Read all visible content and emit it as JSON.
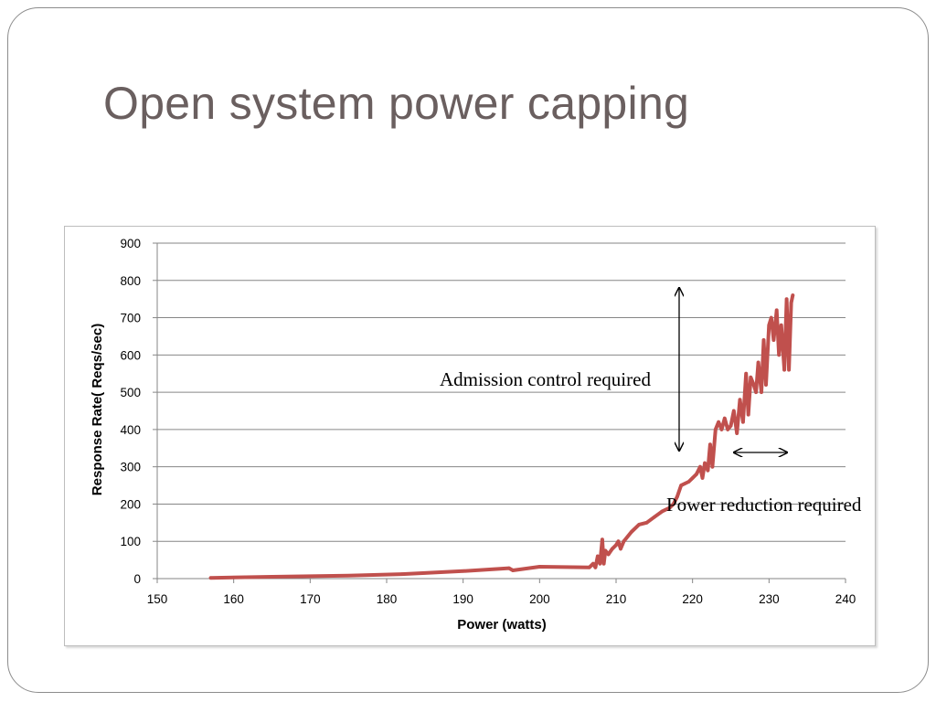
{
  "slide": {
    "title": "Open system power capping"
  },
  "colors": {
    "series": "#c0504d",
    "grid": "#868686",
    "title": "#6a5f5f"
  },
  "chart_data": {
    "type": "line",
    "title": "",
    "xlabel": "Power (watts)",
    "ylabel": "Response Rate( Reqs/sec)",
    "xlim": [
      150,
      240
    ],
    "ylim": [
      0,
      900
    ],
    "x_ticks": [
      "150",
      "160",
      "170",
      "180",
      "190",
      "200",
      "210",
      "220",
      "230",
      "240"
    ],
    "y_ticks": [
      "0",
      "100",
      "200",
      "300",
      "400",
      "500",
      "600",
      "700",
      "800",
      "900"
    ],
    "grid": "horizontal",
    "legend": "none",
    "series": [
      {
        "x": [
          157,
          165,
          175,
          182,
          185,
          190,
          196,
          196.5,
          200,
          206.5,
          207,
          207.3,
          207.6,
          207.9,
          208.2,
          208.4,
          208.6,
          209,
          209.5,
          210,
          210.3,
          210.6,
          211,
          212,
          213,
          214,
          215,
          216,
          217,
          217.5,
          218,
          218.5,
          219,
          219.5,
          220,
          220.5,
          221,
          221.3,
          221.6,
          222,
          222.3,
          222.6,
          223,
          223.4,
          223.8,
          224.2,
          224.6,
          225,
          225.4,
          225.8,
          226.2,
          226.6,
          227,
          227.3,
          227.6,
          228,
          228.3,
          228.6,
          229,
          229.3,
          229.6,
          230,
          230.3,
          230.6,
          231,
          231.3,
          231.6,
          232,
          232.3,
          232.6,
          232.9,
          233.1
        ],
        "y": [
          2,
          5,
          8,
          12,
          15,
          20,
          28,
          22,
          32,
          30,
          40,
          30,
          60,
          40,
          105,
          40,
          75,
          65,
          80,
          90,
          100,
          80,
          100,
          125,
          145,
          150,
          165,
          180,
          190,
          200,
          220,
          250,
          255,
          260,
          270,
          280,
          300,
          270,
          310,
          290,
          360,
          300,
          400,
          420,
          400,
          430,
          400,
          410,
          450,
          390,
          480,
          420,
          550,
          440,
          540,
          520,
          500,
          580,
          500,
          640,
          520,
          680,
          700,
          640,
          720,
          600,
          680,
          560,
          750,
          560,
          740,
          760
        ]
      }
    ],
    "annotations": [
      {
        "text": "Admission control required"
      },
      {
        "text": "Power reduction required"
      }
    ]
  }
}
